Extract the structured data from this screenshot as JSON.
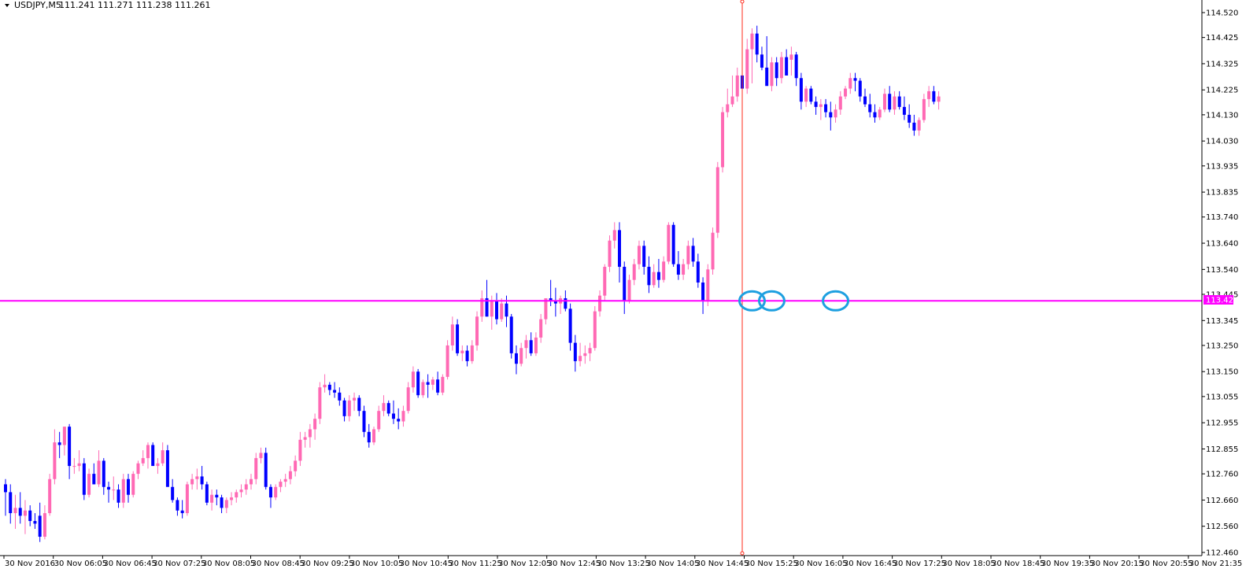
{
  "header": {
    "symbol": "USDJPY,M5",
    "quote": "111.241 111.271 111.238 111.261"
  },
  "colors": {
    "background": "#ffffff",
    "bull": "#ff69b4",
    "bear": "#0000ff",
    "level_line": "#ff00ff",
    "vertical_line": "#ff2a1a",
    "circles": "#1ea0e0",
    "axis": "#000000"
  },
  "level_label": "113.420",
  "chart_data": {
    "type": "candlestick",
    "title": "",
    "ylim": [
      112.46,
      114.52
    ],
    "y_ticks": [
      "114.520",
      "114.425",
      "114.325",
      "114.225",
      "114.130",
      "114.030",
      "113.935",
      "113.835",
      "113.740",
      "113.640",
      "113.540",
      "113.445",
      "113.345",
      "113.250",
      "113.150",
      "113.055",
      "112.955",
      "112.855",
      "112.760",
      "112.660",
      "112.560",
      "112.460"
    ],
    "x_ticks": [
      "30 Nov 2016",
      "30 Nov 06:05",
      "30 Nov 06:45",
      "30 Nov 07:25",
      "30 Nov 08:05",
      "30 Nov 08:45",
      "30 Nov 09:25",
      "30 Nov 10:05",
      "30 Nov 10:45",
      "30 Nov 11:25",
      "30 Nov 12:05",
      "30 Nov 12:45",
      "30 Nov 13:25",
      "30 Nov 14:05",
      "30 Nov 14:45",
      "30 Nov 15:25",
      "30 Nov 16:05",
      "30 Nov 16:45",
      "30 Nov 17:25",
      "30 Nov 18:05",
      "30 Nov 18:45",
      "30 Nov 19:35",
      "30 Nov 20:15",
      "30 Nov 20:55",
      "30 Nov 21:35"
    ],
    "horizontal_level": 113.42,
    "vertical_marker_index": 150,
    "circled_candle_indices": [
      152,
      156,
      169
    ],
    "ohlc": [
      [
        112.72,
        112.74,
        112.6,
        112.69
      ],
      [
        112.69,
        112.72,
        112.57,
        112.61
      ],
      [
        112.61,
        112.68,
        112.55,
        112.63
      ],
      [
        112.63,
        112.69,
        112.57,
        112.6
      ],
      [
        112.6,
        112.66,
        112.53,
        112.62
      ],
      [
        112.62,
        112.64,
        112.56,
        112.58
      ],
      [
        112.58,
        112.61,
        112.55,
        112.57
      ],
      [
        112.6,
        112.65,
        112.5,
        112.52
      ],
      [
        112.52,
        112.64,
        112.51,
        112.61
      ],
      [
        112.61,
        112.76,
        112.6,
        112.74
      ],
      [
        112.74,
        112.93,
        112.72,
        112.88
      ],
      [
        112.88,
        112.92,
        112.82,
        112.87
      ],
      [
        112.87,
        112.94,
        112.83,
        112.94
      ],
      [
        112.94,
        112.95,
        112.74,
        112.79
      ],
      [
        112.79,
        112.82,
        112.76,
        112.79
      ],
      [
        112.79,
        112.85,
        112.77,
        112.8
      ],
      [
        112.8,
        112.82,
        112.66,
        112.68
      ],
      [
        112.68,
        112.78,
        112.67,
        112.76
      ],
      [
        112.76,
        112.8,
        112.72,
        112.72
      ],
      [
        112.72,
        112.85,
        112.71,
        112.81
      ],
      [
        112.81,
        112.82,
        112.68,
        112.71
      ],
      [
        112.71,
        112.73,
        112.65,
        112.7
      ],
      [
        112.7,
        112.75,
        112.66,
        112.7
      ],
      [
        112.7,
        112.72,
        112.63,
        112.65
      ],
      [
        112.65,
        112.76,
        112.63,
        112.74
      ],
      [
        112.74,
        112.76,
        112.65,
        112.68
      ],
      [
        112.68,
        112.77,
        112.67,
        112.76
      ],
      [
        112.76,
        112.81,
        112.74,
        112.8
      ],
      [
        112.8,
        112.85,
        112.79,
        112.82
      ],
      [
        112.82,
        112.88,
        112.78,
        112.87
      ],
      [
        112.87,
        112.88,
        112.8,
        112.79
      ],
      [
        112.79,
        112.82,
        112.76,
        112.8
      ],
      [
        112.8,
        112.88,
        112.79,
        112.85
      ],
      [
        112.85,
        112.87,
        112.72,
        112.71
      ],
      [
        112.71,
        112.74,
        112.65,
        112.66
      ],
      [
        112.66,
        112.67,
        112.6,
        112.62
      ],
      [
        112.62,
        112.66,
        112.59,
        112.61
      ],
      [
        112.61,
        112.73,
        112.6,
        112.72
      ],
      [
        112.72,
        112.76,
        112.7,
        112.74
      ],
      [
        112.74,
        112.78,
        112.7,
        112.75
      ],
      [
        112.75,
        112.79,
        112.7,
        112.72
      ],
      [
        112.72,
        112.73,
        112.64,
        112.65
      ],
      [
        112.65,
        112.7,
        112.62,
        112.68
      ],
      [
        112.68,
        112.7,
        112.64,
        112.67
      ],
      [
        112.67,
        112.68,
        112.61,
        112.63
      ],
      [
        112.63,
        112.67,
        112.61,
        112.66
      ],
      [
        112.66,
        112.69,
        112.64,
        112.67
      ],
      [
        112.67,
        112.7,
        112.65,
        112.69
      ],
      [
        112.69,
        112.72,
        112.67,
        112.7
      ],
      [
        112.7,
        112.74,
        112.68,
        112.72
      ],
      [
        112.72,
        112.76,
        112.7,
        112.74
      ],
      [
        112.74,
        112.84,
        112.72,
        112.82
      ],
      [
        112.82,
        112.86,
        112.8,
        112.84
      ],
      [
        112.84,
        112.86,
        112.7,
        112.71
      ],
      [
        112.71,
        112.72,
        112.63,
        112.67
      ],
      [
        112.67,
        112.72,
        112.66,
        112.71
      ],
      [
        112.71,
        112.74,
        112.69,
        112.73
      ],
      [
        112.73,
        112.76,
        112.71,
        112.74
      ],
      [
        112.74,
        112.79,
        112.72,
        112.77
      ],
      [
        112.77,
        112.83,
        112.75,
        112.81
      ],
      [
        112.81,
        112.92,
        112.79,
        112.89
      ],
      [
        112.89,
        112.92,
        112.86,
        112.9
      ],
      [
        112.9,
        112.95,
        112.86,
        112.93
      ],
      [
        112.93,
        112.99,
        112.89,
        112.97
      ],
      [
        112.97,
        113.11,
        112.95,
        113.09
      ],
      [
        113.09,
        113.14,
        113.07,
        113.1
      ],
      [
        113.1,
        113.11,
        113.06,
        113.08
      ],
      [
        113.08,
        113.11,
        113.05,
        113.07
      ],
      [
        113.07,
        113.09,
        113.02,
        113.04
      ],
      [
        113.04,
        113.05,
        112.96,
        112.98
      ],
      [
        112.98,
        113.06,
        112.96,
        113.04
      ],
      [
        113.04,
        113.07,
        113.0,
        113.05
      ],
      [
        113.05,
        113.06,
        112.98,
        113.0
      ],
      [
        113.0,
        113.02,
        112.9,
        112.92
      ],
      [
        112.92,
        112.95,
        112.86,
        112.88
      ],
      [
        112.88,
        112.94,
        112.87,
        112.93
      ],
      [
        112.93,
        113.02,
        112.92,
        113.0
      ],
      [
        113.0,
        113.06,
        112.98,
        113.03
      ],
      [
        113.03,
        113.04,
        112.98,
        112.99
      ],
      [
        112.99,
        113.04,
        112.95,
        112.97
      ],
      [
        112.97,
        113.01,
        112.93,
        112.96
      ],
      [
        112.96,
        113.02,
        112.94,
        113.0
      ],
      [
        113.0,
        113.11,
        112.99,
        113.09
      ],
      [
        113.09,
        113.17,
        113.07,
        113.15
      ],
      [
        113.15,
        113.16,
        113.05,
        113.06
      ],
      [
        113.06,
        113.12,
        113.05,
        113.11
      ],
      [
        113.11,
        113.14,
        113.05,
        113.1
      ],
      [
        113.1,
        113.13,
        113.08,
        113.12
      ],
      [
        113.12,
        113.15,
        113.06,
        113.07
      ],
      [
        113.07,
        113.14,
        113.06,
        113.13
      ],
      [
        113.13,
        113.27,
        113.12,
        113.25
      ],
      [
        113.25,
        113.36,
        113.23,
        113.33
      ],
      [
        113.33,
        113.35,
        113.21,
        113.22
      ],
      [
        113.22,
        113.25,
        113.19,
        113.23
      ],
      [
        113.23,
        113.25,
        113.17,
        113.19
      ],
      [
        113.19,
        113.27,
        113.18,
        113.25
      ],
      [
        113.25,
        113.38,
        113.23,
        113.36
      ],
      [
        113.36,
        113.46,
        113.34,
        113.43
      ],
      [
        113.43,
        113.5,
        113.36,
        113.36
      ],
      [
        113.36,
        113.44,
        113.31,
        113.42
      ],
      [
        113.42,
        113.45,
        113.33,
        113.35
      ],
      [
        113.35,
        113.43,
        113.34,
        113.41
      ],
      [
        113.41,
        113.44,
        113.32,
        113.36
      ],
      [
        113.36,
        113.37,
        113.2,
        113.22
      ],
      [
        113.22,
        113.25,
        113.14,
        113.18
      ],
      [
        113.18,
        113.26,
        113.17,
        113.24
      ],
      [
        113.24,
        113.29,
        113.2,
        113.27
      ],
      [
        113.27,
        113.3,
        113.21,
        113.22
      ],
      [
        113.22,
        113.3,
        113.21,
        113.28
      ],
      [
        113.28,
        113.37,
        113.26,
        113.35
      ],
      [
        113.35,
        113.42,
        113.33,
        113.43
      ],
      [
        113.43,
        113.5,
        113.4,
        113.42
      ],
      [
        113.42,
        113.47,
        113.36,
        113.41
      ],
      [
        113.41,
        113.44,
        113.37,
        113.43
      ],
      [
        113.43,
        113.46,
        113.38,
        113.39
      ],
      [
        113.39,
        113.41,
        113.23,
        113.26
      ],
      [
        113.26,
        113.29,
        113.15,
        113.19
      ],
      [
        113.19,
        113.26,
        113.17,
        113.21
      ],
      [
        113.21,
        113.25,
        113.18,
        113.22
      ],
      [
        113.22,
        113.26,
        113.19,
        113.24
      ],
      [
        113.24,
        113.4,
        113.23,
        113.38
      ],
      [
        113.38,
        113.46,
        113.36,
        113.44
      ],
      [
        113.44,
        113.56,
        113.42,
        113.55
      ],
      [
        113.55,
        113.67,
        113.53,
        113.65
      ],
      [
        113.65,
        113.72,
        113.62,
        113.69
      ],
      [
        113.69,
        113.72,
        113.49,
        113.55
      ],
      [
        113.55,
        113.57,
        113.37,
        113.42
      ],
      [
        113.42,
        113.52,
        113.41,
        113.5
      ],
      [
        113.5,
        113.58,
        113.48,
        113.56
      ],
      [
        113.56,
        113.65,
        113.54,
        113.63
      ],
      [
        113.63,
        113.65,
        113.52,
        113.55
      ],
      [
        113.55,
        113.59,
        113.45,
        113.48
      ],
      [
        113.48,
        113.56,
        113.47,
        113.53
      ],
      [
        113.53,
        113.58,
        113.47,
        113.5
      ],
      [
        113.5,
        113.59,
        113.49,
        113.57
      ],
      [
        113.57,
        113.72,
        113.56,
        113.71
      ],
      [
        113.71,
        113.72,
        113.55,
        113.56
      ],
      [
        113.56,
        113.61,
        113.5,
        113.52
      ],
      [
        113.52,
        113.58,
        113.5,
        113.56
      ],
      [
        113.56,
        113.65,
        113.54,
        113.63
      ],
      [
        113.63,
        113.66,
        113.55,
        113.57
      ],
      [
        113.57,
        113.6,
        113.47,
        113.49
      ],
      [
        113.49,
        113.51,
        113.37,
        113.42
      ],
      [
        113.42,
        113.56,
        113.4,
        113.54
      ],
      [
        113.54,
        113.7,
        113.52,
        113.68
      ],
      [
        113.68,
        113.95,
        113.66,
        113.93
      ],
      [
        113.93,
        114.16,
        113.91,
        114.14
      ],
      [
        114.14,
        114.23,
        114.12,
        114.17
      ],
      [
        114.17,
        114.28,
        114.16,
        114.2
      ],
      [
        114.2,
        114.31,
        114.18,
        114.28
      ],
      [
        114.28,
        114.36,
        114.2,
        114.23
      ],
      [
        114.23,
        114.42,
        114.21,
        114.38
      ],
      [
        114.38,
        114.46,
        114.25,
        114.44
      ],
      [
        114.44,
        114.47,
        114.33,
        114.36
      ],
      [
        114.36,
        114.39,
        114.3,
        114.31
      ],
      [
        114.31,
        114.43,
        114.26,
        114.24
      ],
      [
        114.24,
        114.35,
        114.22,
        114.33
      ],
      [
        114.33,
        114.35,
        114.24,
        114.27
      ],
      [
        114.27,
        114.37,
        114.25,
        114.35
      ],
      [
        114.35,
        114.38,
        114.28,
        114.28
      ],
      [
        114.34,
        114.39,
        114.28,
        114.36
      ],
      [
        114.36,
        114.37,
        114.24,
        114.27
      ],
      [
        114.27,
        114.29,
        114.15,
        114.18
      ],
      [
        114.18,
        114.24,
        114.16,
        114.23
      ],
      [
        114.23,
        114.24,
        114.17,
        114.18
      ],
      [
        114.18,
        114.2,
        114.13,
        114.16
      ],
      [
        114.16,
        114.19,
        114.11,
        114.17
      ],
      [
        114.17,
        114.19,
        114.12,
        114.14
      ],
      [
        114.14,
        114.18,
        114.07,
        114.12
      ],
      [
        114.12,
        114.17,
        114.1,
        114.15
      ],
      [
        114.15,
        114.22,
        114.13,
        114.2
      ],
      [
        114.2,
        114.24,
        114.19,
        114.23
      ],
      [
        114.23,
        114.29,
        114.21,
        114.27
      ],
      [
        114.27,
        114.29,
        114.22,
        114.26
      ],
      [
        114.26,
        114.27,
        114.18,
        114.2
      ],
      [
        114.2,
        114.23,
        114.16,
        114.17
      ],
      [
        114.17,
        114.21,
        114.12,
        114.14
      ],
      [
        114.14,
        114.17,
        114.1,
        114.12
      ],
      [
        114.12,
        114.16,
        114.11,
        114.15
      ],
      [
        114.15,
        114.23,
        114.14,
        114.21
      ],
      [
        114.21,
        114.24,
        114.14,
        114.15
      ],
      [
        114.15,
        114.22,
        114.13,
        114.2
      ],
      [
        114.2,
        114.22,
        114.15,
        114.16
      ],
      [
        114.16,
        114.2,
        114.11,
        114.13
      ],
      [
        114.13,
        114.17,
        114.08,
        114.1
      ],
      [
        114.1,
        114.13,
        114.05,
        114.07
      ],
      [
        114.07,
        114.12,
        114.05,
        114.11
      ],
      [
        114.11,
        114.21,
        114.1,
        114.19
      ],
      [
        114.19,
        114.24,
        114.16,
        114.22
      ],
      [
        114.22,
        114.24,
        114.17,
        114.18
      ],
      [
        114.18,
        114.22,
        114.15,
        114.2
      ]
    ]
  }
}
